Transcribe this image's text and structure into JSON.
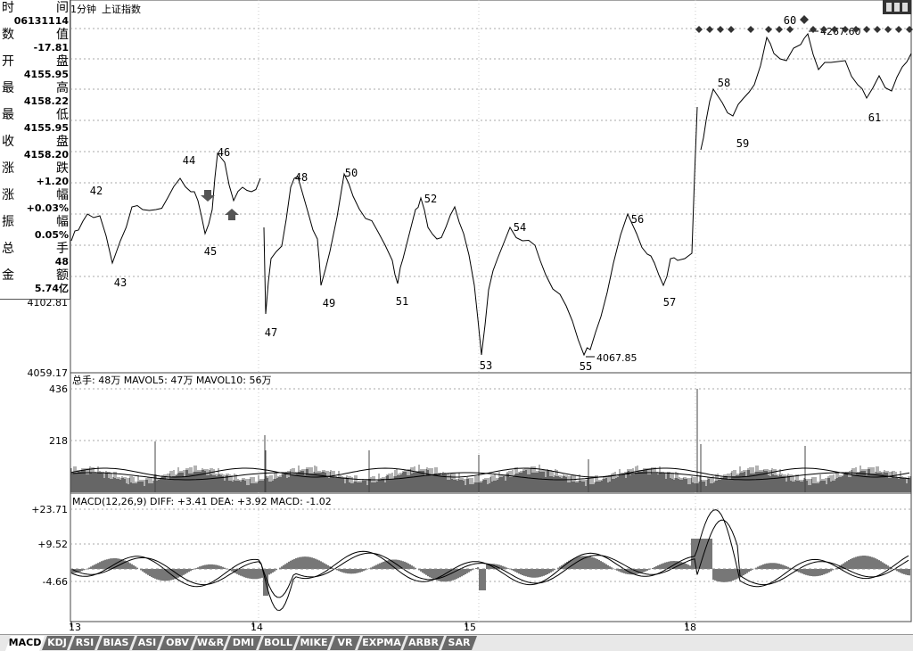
{
  "header": {
    "period": "1分钟",
    "index_name": "上证指数"
  },
  "info_panel": {
    "time": {
      "label": "时",
      "suffix": "间",
      "value": "06131114"
    },
    "value": {
      "label": "数",
      "suffix": "值",
      "value": "-17.81"
    },
    "open": {
      "label": "开",
      "suffix": "盘",
      "value": "4155.95"
    },
    "high": {
      "label": "最",
      "suffix": "高",
      "value": "4158.22"
    },
    "low": {
      "label": "最",
      "suffix": "低",
      "value": "4155.95"
    },
    "close": {
      "label": "收",
      "suffix": "盘",
      "value": "4158.20"
    },
    "change": {
      "label": "涨",
      "suffix": "跌",
      "value": "+1.20"
    },
    "change_pct": {
      "label": "涨",
      "suffix": "幅",
      "value": "+0.03%"
    },
    "amplitude": {
      "label": "振",
      "suffix": "幅",
      "value": "0.05%"
    },
    "total_hands": {
      "label": "总",
      "suffix": "手",
      "value": "48"
    },
    "amount": {
      "label": "金",
      "suffix": "额",
      "value": "5.74亿"
    }
  },
  "price_panel": {
    "y_labels": [
      "4102.81",
      "4059.17"
    ],
    "wave_labels": [
      "42",
      "43",
      "44",
      "45",
      "46",
      "47",
      "48",
      "49",
      "50",
      "51",
      "52",
      "53",
      "54",
      "55",
      "56",
      "57",
      "58",
      "59",
      "60",
      "61"
    ],
    "annotations": [
      "4267.60",
      "4067.85"
    ]
  },
  "volume_panel": {
    "title": "总手: 48万  MAVOL5: 47万  MAVOL10: 56万",
    "y_labels": [
      "436",
      "218"
    ]
  },
  "macd_panel": {
    "title": "MACD(12,26,9) DIFF: +3.41 DEA: +3.92 MACD: -1.02",
    "y_labels": [
      "+23.71",
      "+9.52",
      "-4.66"
    ]
  },
  "x_axis": {
    "labels": [
      "13",
      "14",
      "15",
      "18"
    ]
  },
  "tabs": [
    "MACD",
    "KDJ",
    "RSI",
    "BIAS",
    "ASI",
    "OBV",
    "W&R",
    "DMI",
    "BOLL",
    "MIKE",
    "VR",
    "EXPMA",
    "ARBR",
    "SAR"
  ],
  "colors": {
    "background": "#ffffff",
    "line": "#000000",
    "grid": "#999999",
    "bar": "#555555",
    "tab": "#6a6a6a"
  }
}
